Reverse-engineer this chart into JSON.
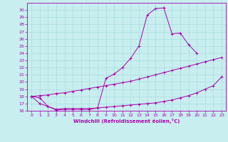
{
  "xlabel": "Windchill (Refroidissement éolien,°C)",
  "bg_color": "#c8eef0",
  "grid_color": "#aadddd",
  "line_color": "#aa00aa",
  "xlim": [
    -0.5,
    23.5
  ],
  "ylim": [
    16,
    31
  ],
  "yticks": [
    16,
    17,
    18,
    19,
    20,
    21,
    22,
    23,
    24,
    25,
    26,
    27,
    28,
    29,
    30
  ],
  "xticks": [
    0,
    1,
    2,
    3,
    4,
    5,
    6,
    7,
    8,
    9,
    10,
    11,
    12,
    13,
    14,
    15,
    16,
    17,
    18,
    19,
    20,
    21,
    22,
    23
  ],
  "series": [
    {
      "x": [
        0,
        1,
        2,
        3,
        4,
        5,
        6,
        7,
        8,
        9,
        10,
        11,
        12,
        13,
        14,
        15,
        16,
        17,
        18,
        19,
        20,
        21,
        22,
        23
      ],
      "y": [
        18.0,
        17.8,
        16.6,
        16.1,
        16.2,
        16.2,
        16.2,
        16.2,
        16.4,
        20.5,
        21.1,
        22.0,
        23.3,
        25.0,
        29.3,
        30.2,
        30.3,
        null,
        null,
        null,
        null,
        null,
        null,
        null
      ]
    },
    {
      "x": [
        16,
        17,
        18,
        19,
        20,
        21,
        22,
        23
      ],
      "y": [
        30.3,
        26.7,
        26.8,
        25.2,
        24.0,
        null,
        null,
        null
      ]
    },
    {
      "x": [
        0,
        1,
        2,
        3,
        4,
        5,
        6,
        7,
        8,
        9,
        10,
        11,
        12,
        13,
        14,
        15,
        16,
        17,
        18,
        19,
        20,
        21,
        22,
        23
      ],
      "y": [
        18.0,
        18.1,
        18.2,
        18.4,
        18.5,
        18.7,
        18.9,
        19.1,
        19.3,
        19.5,
        19.7,
        19.9,
        20.1,
        20.4,
        20.7,
        21.0,
        21.3,
        21.6,
        21.9,
        22.2,
        22.5,
        22.8,
        23.1,
        23.4
      ]
    },
    {
      "x": [
        0,
        1,
        2,
        3,
        4,
        5,
        6,
        7,
        8,
        9,
        10,
        11,
        12,
        13,
        14,
        15,
        16,
        17,
        18,
        19,
        20,
        21,
        22,
        23
      ],
      "y": [
        18.0,
        17.0,
        16.6,
        16.2,
        16.3,
        16.3,
        16.3,
        16.3,
        16.4,
        16.5,
        16.6,
        16.7,
        16.8,
        16.9,
        17.0,
        17.1,
        17.3,
        17.5,
        17.8,
        18.1,
        18.5,
        19.0,
        19.5,
        20.7
      ]
    }
  ]
}
